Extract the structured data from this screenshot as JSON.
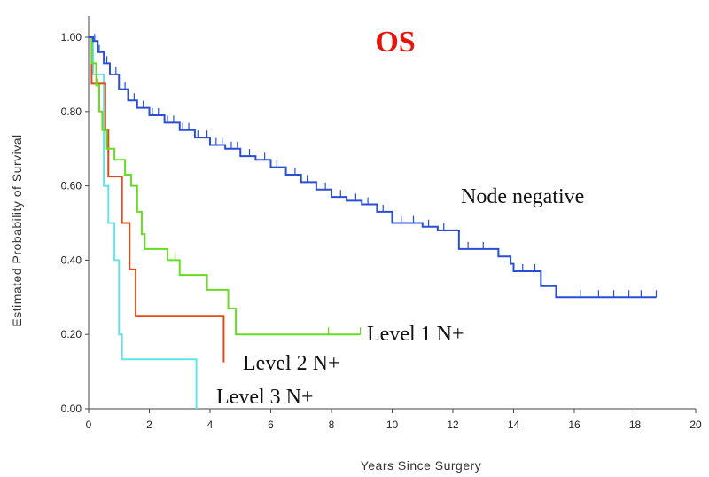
{
  "chart_data": {
    "type": "line",
    "subtype": "kaplan-meier",
    "title": "OS",
    "title_color": "#e8140c",
    "xlabel": "Years Since Surgery",
    "ylabel": "Estimated Probability of Survival",
    "xlim": [
      0,
      20
    ],
    "ylim": [
      0,
      1
    ],
    "x_ticks": [
      "0",
      "2",
      "4",
      "6",
      "8",
      "10",
      "12",
      "14",
      "16",
      "18",
      "20"
    ],
    "y_ticks": [
      "0.00",
      "0.20",
      "0.40",
      "0.60",
      "0.80",
      "1.00"
    ],
    "grid": false,
    "series": [
      {
        "name": "Node negative",
        "color": "#2a4fd4",
        "steps": [
          [
            0,
            1.0
          ],
          [
            0.15,
            0.99
          ],
          [
            0.3,
            0.96
          ],
          [
            0.5,
            0.93
          ],
          [
            0.7,
            0.9
          ],
          [
            1.0,
            0.86
          ],
          [
            1.3,
            0.83
          ],
          [
            1.6,
            0.81
          ],
          [
            2.0,
            0.79
          ],
          [
            2.5,
            0.77
          ],
          [
            3.0,
            0.75
          ],
          [
            3.5,
            0.73
          ],
          [
            4.0,
            0.71
          ],
          [
            4.5,
            0.7
          ],
          [
            5.0,
            0.68
          ],
          [
            5.5,
            0.67
          ],
          [
            6.0,
            0.65
          ],
          [
            6.5,
            0.63
          ],
          [
            7.0,
            0.61
          ],
          [
            7.5,
            0.59
          ],
          [
            8.0,
            0.57
          ],
          [
            8.5,
            0.56
          ],
          [
            9.0,
            0.55
          ],
          [
            9.5,
            0.53
          ],
          [
            10.0,
            0.5
          ],
          [
            11.0,
            0.49
          ],
          [
            11.5,
            0.48
          ],
          [
            12.2,
            0.43
          ],
          [
            13.5,
            0.41
          ],
          [
            13.9,
            0.39
          ],
          [
            14.0,
            0.37
          ],
          [
            14.9,
            0.33
          ],
          [
            15.4,
            0.3
          ],
          [
            18.7,
            0.3
          ]
        ],
        "censored": [
          0.2,
          0.35,
          0.6,
          0.9,
          1.2,
          1.5,
          1.8,
          2.1,
          2.3,
          2.6,
          2.8,
          3.1,
          3.3,
          3.6,
          3.9,
          4.2,
          4.4,
          4.7,
          4.9,
          5.3,
          5.8,
          6.2,
          6.8,
          7.2,
          7.8,
          8.3,
          8.8,
          9.2,
          9.7,
          10.3,
          10.7,
          11.2,
          11.7,
          12.5,
          13.0,
          14.3,
          14.7,
          16.2,
          16.8,
          17.3,
          17.8,
          18.2,
          18.7
        ]
      },
      {
        "name": "Level 1 N+",
        "color": "#66dd22",
        "steps": [
          [
            0,
            1.0
          ],
          [
            0.1,
            0.93
          ],
          [
            0.25,
            0.87
          ],
          [
            0.35,
            0.8
          ],
          [
            0.45,
            0.75
          ],
          [
            0.6,
            0.7
          ],
          [
            0.85,
            0.67
          ],
          [
            1.2,
            0.63
          ],
          [
            1.4,
            0.6
          ],
          [
            1.6,
            0.53
          ],
          [
            1.75,
            0.47
          ],
          [
            1.85,
            0.43
          ],
          [
            2.6,
            0.4
          ],
          [
            3.0,
            0.36
          ],
          [
            3.9,
            0.32
          ],
          [
            4.6,
            0.27
          ],
          [
            4.85,
            0.2
          ],
          [
            8.95,
            0.2
          ]
        ],
        "censored": [
          0.3,
          2.85,
          3.0,
          4.6,
          7.9,
          8.95
        ]
      },
      {
        "name": "Level 2 N+",
        "color": "#e34a1a",
        "steps": [
          [
            0,
            1.0
          ],
          [
            0.1,
            0.875
          ],
          [
            0.55,
            0.75
          ],
          [
            0.65,
            0.625
          ],
          [
            1.1,
            0.5
          ],
          [
            1.35,
            0.375
          ],
          [
            1.55,
            0.25
          ],
          [
            4.45,
            0.125
          ],
          [
            4.45,
            0.125
          ]
        ],
        "censored": []
      },
      {
        "name": "Level 3 N+",
        "color": "#62e4ea",
        "steps": [
          [
            0,
            1.0
          ],
          [
            0.15,
            0.9
          ],
          [
            0.5,
            0.6
          ],
          [
            0.65,
            0.5
          ],
          [
            0.85,
            0.4
          ],
          [
            1.0,
            0.2
          ],
          [
            1.1,
            0.133
          ],
          [
            3.55,
            0.0
          ]
        ],
        "censored": []
      }
    ],
    "annotations": [
      {
        "text": "Node negative"
      },
      {
        "text": "Level 1 N+"
      },
      {
        "text": "Level 2 N+"
      },
      {
        "text": "Level 3 N+"
      }
    ]
  }
}
